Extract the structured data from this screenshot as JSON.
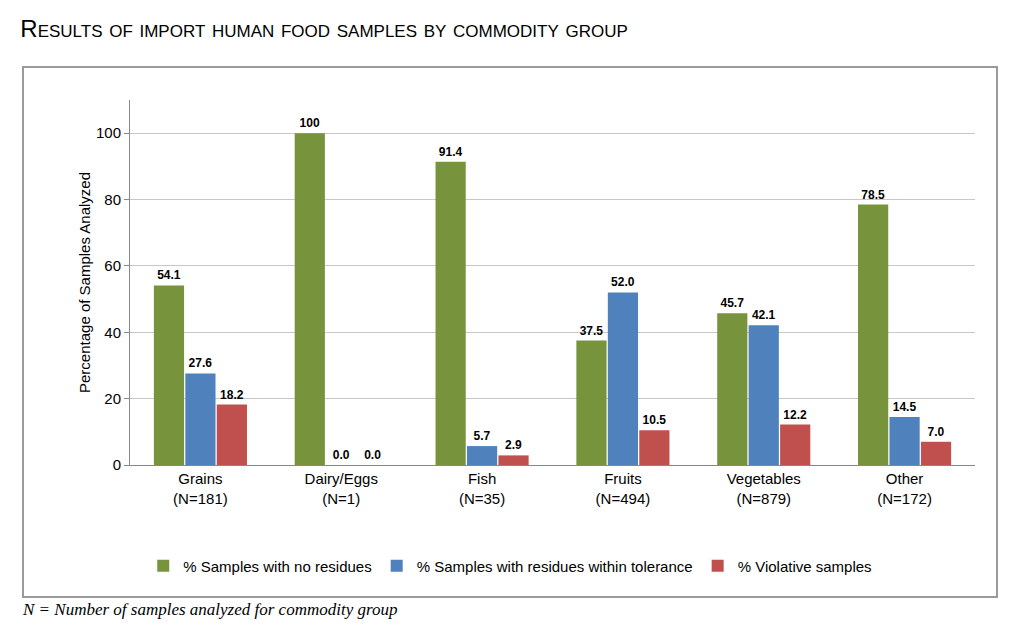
{
  "chart_data": {
    "type": "bar",
    "title": "Results of import human food samples by commodity group",
    "y_label": "Percentage of Samples Analyzed",
    "categories": [
      "Grains (N=181)",
      "Dairy/Eggs (N=1)",
      "Fish (N=35)",
      "Fruits (N=494)",
      "Vegetables (N=879)",
      "Other (N=172)"
    ],
    "series": [
      {
        "name": "% Samples with no residues",
        "color": "#77933C",
        "values": [
          54.1,
          100,
          91.4,
          37.5,
          45.7,
          78.5
        ],
        "value_labels": [
          "54.1",
          "100",
          "91.4",
          "37.5",
          "45.7",
          "78.5"
        ]
      },
      {
        "name": "% Samples with residues within tolerance",
        "color": "#4F81BD",
        "values": [
          27.6,
          0,
          5.7,
          52,
          42.1,
          14.5
        ],
        "value_labels": [
          "27.6",
          "0.0",
          "5.7",
          "52.0",
          "42.1",
          "14.5"
        ]
      },
      {
        "name": "% Violative samples",
        "color": "#C0504D",
        "values": [
          18.2,
          0,
          2.9,
          10.5,
          12.2,
          7
        ],
        "value_labels": [
          "18.2",
          "0.0",
          "2.9",
          "10.5",
          "12.2",
          "7.0"
        ]
      }
    ],
    "ylim": [
      0,
      110
    ],
    "yticks": [
      0,
      20,
      40,
      60,
      80,
      100
    ],
    "grid": true,
    "legend": "bottom",
    "data_labels": true,
    "annotations": [
      {
        "text": "N = Number of samples analyzed for commodity group"
      }
    ]
  }
}
